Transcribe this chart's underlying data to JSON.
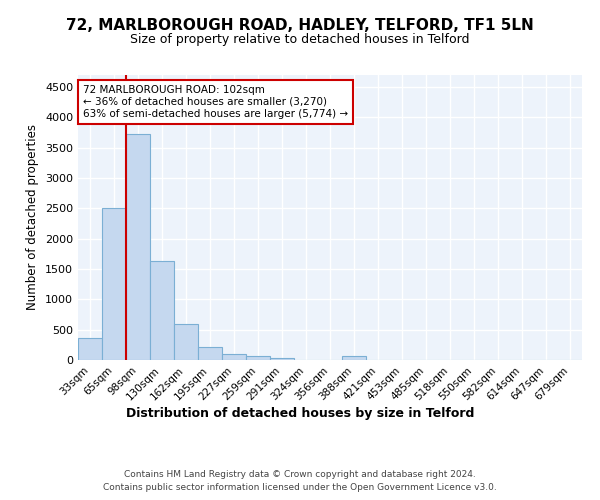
{
  "title1": "72, MARLBOROUGH ROAD, HADLEY, TELFORD, TF1 5LN",
  "title2": "Size of property relative to detached houses in Telford",
  "xlabel": "Distribution of detached houses by size in Telford",
  "ylabel": "Number of detached properties",
  "footer1": "Contains HM Land Registry data © Crown copyright and database right 2024.",
  "footer2": "Contains public sector information licensed under the Open Government Licence v3.0.",
  "categories": [
    "33sqm",
    "65sqm",
    "98sqm",
    "130sqm",
    "162sqm",
    "195sqm",
    "227sqm",
    "259sqm",
    "291sqm",
    "324sqm",
    "356sqm",
    "388sqm",
    "421sqm",
    "453sqm",
    "485sqm",
    "518sqm",
    "550sqm",
    "582sqm",
    "614sqm",
    "647sqm",
    "679sqm"
  ],
  "values": [
    370,
    2500,
    3720,
    1630,
    590,
    220,
    105,
    60,
    40,
    0,
    0,
    60,
    0,
    0,
    0,
    0,
    0,
    0,
    0,
    0,
    0
  ],
  "bar_color": "#c5d8ef",
  "bar_edge_color": "#7bafd4",
  "highlight_bar_index": 2,
  "annotation_text": "72 MARLBOROUGH ROAD: 102sqm\n← 36% of detached houses are smaller (3,270)\n63% of semi-detached houses are larger (5,774) →",
  "annotation_box_edge_color": "#cc0000",
  "red_line_color": "#cc0000",
  "ylim": [
    0,
    4700
  ],
  "yticks": [
    0,
    500,
    1000,
    1500,
    2000,
    2500,
    3000,
    3500,
    4000,
    4500
  ],
  "bg_color": "#ffffff",
  "plot_bg_color": "#edf3fb",
  "grid_color": "#ffffff",
  "title1_fontsize": 11,
  "title2_fontsize": 9
}
